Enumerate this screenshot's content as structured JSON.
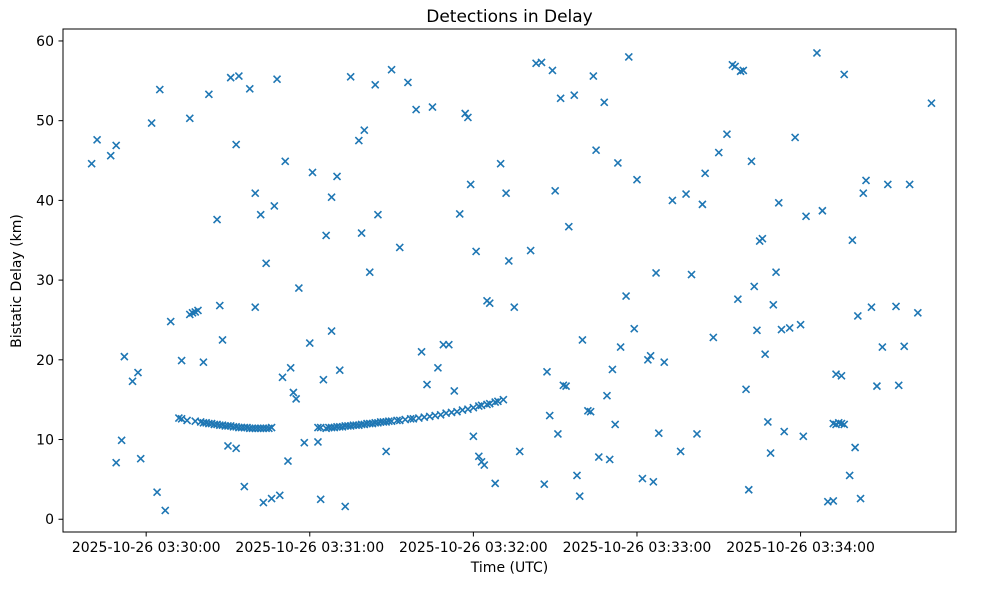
{
  "figure": {
    "background": "#ffffff",
    "text_color": "#000000"
  },
  "chart_data": {
    "type": "scatter",
    "title": "Detections in Delay",
    "xlabel": "Time (UTC)",
    "ylabel": "Bistatic Delay (km)",
    "legend": "none",
    "grid": false,
    "marker": {
      "shape": "x",
      "color": "#1f77b4",
      "size": 7,
      "stroke_width": 1.6
    },
    "x_encoding": "seconds relative to first x tick (2025-10-26 03:30:00 UTC)",
    "xlim": [
      -30.5,
      297
    ],
    "ylim": [
      -1.6,
      61.5
    ],
    "xticks": [
      {
        "t": 0,
        "label": "2025-10-26 03:30:00"
      },
      {
        "t": 60,
        "label": "2025-10-26 03:31:00"
      },
      {
        "t": 120,
        "label": "2025-10-26 03:32:00"
      },
      {
        "t": 180,
        "label": "2025-10-26 03:33:00"
      },
      {
        "t": 240,
        "label": "2025-10-26 03:34:00"
      }
    ],
    "yticks": [
      0,
      10,
      20,
      30,
      40,
      50,
      60
    ],
    "points": [
      [
        -20,
        44.6
      ],
      [
        -18,
        47.6
      ],
      [
        -13,
        45.6
      ],
      [
        -11,
        46.9
      ],
      [
        -11,
        7.1
      ],
      [
        -9,
        9.9
      ],
      [
        -8,
        20.4
      ],
      [
        -5,
        17.3
      ],
      [
        -3,
        18.4
      ],
      [
        -2,
        7.6
      ],
      [
        2,
        49.7
      ],
      [
        4,
        3.4
      ],
      [
        5,
        53.9
      ],
      [
        7,
        1.1
      ],
      [
        9,
        24.8
      ],
      [
        12,
        12.7
      ],
      [
        13,
        12.6
      ],
      [
        13,
        19.9
      ],
      [
        15,
        12.4
      ],
      [
        16,
        25.7
      ],
      [
        16,
        50.3
      ],
      [
        17,
        25.9
      ],
      [
        18,
        12.3
      ],
      [
        18,
        26.0
      ],
      [
        19,
        26.2
      ],
      [
        20,
        12.2
      ],
      [
        21,
        12.1
      ],
      [
        21,
        19.7
      ],
      [
        22,
        12.1
      ],
      [
        23,
        12.0
      ],
      [
        23,
        53.3
      ],
      [
        24,
        12.0
      ],
      [
        25,
        11.9
      ],
      [
        26,
        11.9
      ],
      [
        26,
        37.6
      ],
      [
        27,
        11.8
      ],
      [
        27,
        26.8
      ],
      [
        28,
        11.8
      ],
      [
        28,
        22.5
      ],
      [
        29,
        11.7
      ],
      [
        30,
        9.2
      ],
      [
        30,
        11.7
      ],
      [
        31,
        11.7
      ],
      [
        31,
        55.4
      ],
      [
        32,
        11.6
      ],
      [
        33,
        8.9
      ],
      [
        33,
        11.6
      ],
      [
        33,
        47.0
      ],
      [
        34,
        11.5
      ],
      [
        34,
        55.6
      ],
      [
        35,
        11.5
      ],
      [
        36,
        4.1
      ],
      [
        36,
        11.5
      ],
      [
        37,
        11.5
      ],
      [
        38,
        11.4
      ],
      [
        38,
        54.0
      ],
      [
        39,
        11.4
      ],
      [
        40,
        11.4
      ],
      [
        40,
        26.6
      ],
      [
        40,
        40.9
      ],
      [
        41,
        11.4
      ],
      [
        42,
        11.4
      ],
      [
        42,
        38.2
      ],
      [
        43,
        2.1
      ],
      [
        43,
        11.4
      ],
      [
        44,
        11.4
      ],
      [
        44,
        32.1
      ],
      [
        45,
        11.4
      ],
      [
        46,
        2.6
      ],
      [
        46,
        11.5
      ],
      [
        47,
        39.3
      ],
      [
        48,
        55.2
      ],
      [
        49,
        3.0
      ],
      [
        50,
        17.8
      ],
      [
        51,
        44.9
      ],
      [
        52,
        7.3
      ],
      [
        53,
        19.0
      ],
      [
        54,
        15.9
      ],
      [
        55,
        15.1
      ],
      [
        56,
        29.0
      ],
      [
        58,
        9.6
      ],
      [
        60,
        22.1
      ],
      [
        61,
        43.5
      ],
      [
        63,
        9.7
      ],
      [
        64,
        2.5
      ],
      [
        65,
        17.5
      ],
      [
        66,
        35.6
      ],
      [
        68,
        40.4
      ],
      [
        68,
        23.6
      ],
      [
        70,
        43.0
      ],
      [
        71,
        18.7
      ],
      [
        73,
        1.6
      ],
      [
        63,
        11.5
      ],
      [
        64,
        11.5
      ],
      [
        66,
        11.4
      ],
      [
        67,
        11.5
      ],
      [
        68,
        11.5
      ],
      [
        69,
        11.5
      ],
      [
        70,
        11.6
      ],
      [
        71,
        11.6
      ],
      [
        72,
        11.6
      ],
      [
        73,
        11.7
      ],
      [
        74,
        11.7
      ],
      [
        75,
        11.7
      ],
      [
        76,
        11.8
      ],
      [
        77,
        11.8
      ],
      [
        78,
        11.8
      ],
      [
        79,
        11.9
      ],
      [
        80,
        11.9
      ],
      [
        81,
        12.0
      ],
      [
        82,
        12.0
      ],
      [
        83,
        12.0
      ],
      [
        84,
        12.1
      ],
      [
        85,
        12.1
      ],
      [
        86,
        12.2
      ],
      [
        87,
        12.2
      ],
      [
        88,
        12.2
      ],
      [
        89,
        12.3
      ],
      [
        90,
        12.3
      ],
      [
        92,
        12.4
      ],
      [
        93,
        12.4
      ],
      [
        95,
        12.5
      ],
      [
        97,
        12.6
      ],
      [
        98,
        12.6
      ],
      [
        100,
        12.7
      ],
      [
        102,
        12.8
      ],
      [
        104,
        12.9
      ],
      [
        106,
        13.0
      ],
      [
        108,
        13.1
      ],
      [
        110,
        13.3
      ],
      [
        112,
        13.4
      ],
      [
        114,
        13.5
      ],
      [
        116,
        13.7
      ],
      [
        118,
        13.8
      ],
      [
        120,
        14.0
      ],
      [
        122,
        14.2
      ],
      [
        123,
        14.3
      ],
      [
        125,
        14.4
      ],
      [
        126,
        14.5
      ],
      [
        128,
        14.7
      ],
      [
        129,
        14.8
      ],
      [
        131,
        15.0
      ],
      [
        75,
        55.5
      ],
      [
        78,
        47.5
      ],
      [
        79,
        35.9
      ],
      [
        80,
        48.8
      ],
      [
        82,
        31.0
      ],
      [
        84,
        54.5
      ],
      [
        85,
        38.2
      ],
      [
        88,
        8.5
      ],
      [
        90,
        56.4
      ],
      [
        93,
        34.1
      ],
      [
        96,
        54.8
      ],
      [
        99,
        51.4
      ],
      [
        101,
        21.0
      ],
      [
        103,
        16.9
      ],
      [
        105,
        51.7
      ],
      [
        107,
        19.0
      ],
      [
        109,
        21.9
      ],
      [
        111,
        21.9
      ],
      [
        113,
        16.1
      ],
      [
        115,
        38.3
      ],
      [
        117,
        50.9
      ],
      [
        118,
        50.4
      ],
      [
        119,
        42.0
      ],
      [
        120,
        10.4
      ],
      [
        121,
        33.6
      ],
      [
        122,
        7.9
      ],
      [
        123,
        7.2
      ],
      [
        124,
        6.8
      ],
      [
        125,
        27.4
      ],
      [
        126,
        27.1
      ],
      [
        128,
        4.5
      ],
      [
        130,
        44.6
      ],
      [
        132,
        40.9
      ],
      [
        133,
        32.4
      ],
      [
        135,
        26.6
      ],
      [
        137,
        8.5
      ],
      [
        141,
        33.7
      ],
      [
        143,
        57.2
      ],
      [
        145,
        57.3
      ],
      [
        146,
        4.4
      ],
      [
        147,
        18.5
      ],
      [
        148,
        13.0
      ],
      [
        149,
        56.3
      ],
      [
        150,
        41.2
      ],
      [
        151,
        10.7
      ],
      [
        152,
        52.8
      ],
      [
        153,
        16.8
      ],
      [
        154,
        16.7
      ],
      [
        155,
        36.7
      ],
      [
        157,
        53.2
      ],
      [
        158,
        5.5
      ],
      [
        159,
        2.9
      ],
      [
        160,
        22.5
      ],
      [
        162,
        13.6
      ],
      [
        163,
        13.5
      ],
      [
        164,
        55.6
      ],
      [
        165,
        46.3
      ],
      [
        166,
        7.8
      ],
      [
        168,
        52.3
      ],
      [
        169,
        15.5
      ],
      [
        170,
        7.5
      ],
      [
        171,
        18.8
      ],
      [
        172,
        11.9
      ],
      [
        173,
        44.7
      ],
      [
        174,
        21.6
      ],
      [
        176,
        28.0
      ],
      [
        177,
        58.0
      ],
      [
        179,
        23.9
      ],
      [
        180,
        42.6
      ],
      [
        182,
        5.1
      ],
      [
        184,
        20.0
      ],
      [
        185,
        20.5
      ],
      [
        186,
        4.7
      ],
      [
        187,
        30.9
      ],
      [
        188,
        10.8
      ],
      [
        190,
        19.7
      ],
      [
        193,
        40.0
      ],
      [
        196,
        8.5
      ],
      [
        198,
        40.8
      ],
      [
        200,
        30.7
      ],
      [
        202,
        10.7
      ],
      [
        204,
        39.5
      ],
      [
        205,
        43.4
      ],
      [
        208,
        22.8
      ],
      [
        210,
        46.0
      ],
      [
        213,
        48.3
      ],
      [
        215,
        57.0
      ],
      [
        216,
        56.8
      ],
      [
        217,
        27.6
      ],
      [
        218,
        56.2
      ],
      [
        219,
        56.3
      ],
      [
        220,
        16.3
      ],
      [
        221,
        3.7
      ],
      [
        222,
        44.9
      ],
      [
        223,
        29.2
      ],
      [
        224,
        23.7
      ],
      [
        225,
        34.9
      ],
      [
        226,
        35.2
      ],
      [
        227,
        20.7
      ],
      [
        228,
        12.2
      ],
      [
        229,
        8.3
      ],
      [
        230,
        26.9
      ],
      [
        231,
        31.0
      ],
      [
        232,
        39.7
      ],
      [
        233,
        23.8
      ],
      [
        234,
        11.0
      ],
      [
        236,
        24.0
      ],
      [
        238,
        47.9
      ],
      [
        240,
        24.4
      ],
      [
        241,
        10.4
      ],
      [
        242,
        38.0
      ],
      [
        246,
        58.5
      ],
      [
        248,
        38.7
      ],
      [
        250,
        2.2
      ],
      [
        252,
        12.0
      ],
      [
        252,
        2.3
      ],
      [
        253,
        11.9
      ],
      [
        253,
        18.2
      ],
      [
        254,
        12.1
      ],
      [
        255,
        12.0
      ],
      [
        255,
        18.0
      ],
      [
        256,
        11.9
      ],
      [
        256,
        55.8
      ],
      [
        258,
        5.5
      ],
      [
        259,
        35.0
      ],
      [
        260,
        9.0
      ],
      [
        261,
        25.5
      ],
      [
        262,
        2.6
      ],
      [
        263,
        40.9
      ],
      [
        264,
        42.5
      ],
      [
        266,
        26.6
      ],
      [
        268,
        16.7
      ],
      [
        270,
        21.6
      ],
      [
        272,
        42.0
      ],
      [
        275,
        26.7
      ],
      [
        276,
        16.8
      ],
      [
        278,
        21.7
      ],
      [
        280,
        42.0
      ],
      [
        283,
        25.9
      ],
      [
        288,
        52.2
      ]
    ]
  }
}
